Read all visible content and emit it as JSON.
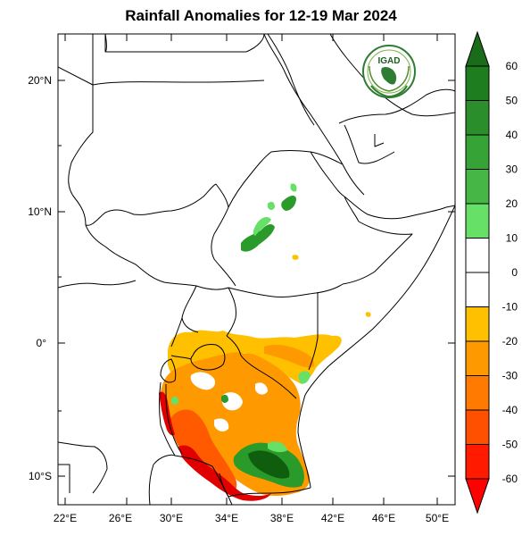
{
  "title": "Rainfall Anomalies for 12-19 Mar 2024",
  "logo": {
    "text": "IGAD",
    "icon": "igad-emblem",
    "color": "#2e7d32"
  },
  "axes": {
    "lat_labels": [
      "20°N",
      "10°N",
      "0°",
      "10°S"
    ],
    "lon_labels": [
      "22°E",
      "26°E",
      "30°E",
      "34°E",
      "38°E",
      "42°E",
      "46°E",
      "50°E"
    ]
  },
  "colorbar": {
    "labels": [
      "60",
      "50",
      "40",
      "30",
      "20",
      "10",
      "0",
      "-10",
      "-20",
      "-30",
      "-40",
      "-50",
      "-60"
    ],
    "colors": [
      "#1a6b1a",
      "#1e7d1e",
      "#2a8f2a",
      "#36a336",
      "#46b646",
      "#66e066",
      "#ffffff",
      "#ffffff",
      "#ffc000",
      "#ff9900",
      "#ff7a00",
      "#ff5000",
      "#ff1a00",
      "#ff0000"
    ]
  },
  "anomaly_colors": {
    "deep_deficit": "#e00000",
    "strong_deficit": "#ff5a00",
    "deficit": "#ff9900",
    "mild_deficit": "#ffc000",
    "mild_surplus": "#66e066",
    "surplus": "#2a9a2a",
    "strong_surplus": "#0e5e0e"
  }
}
